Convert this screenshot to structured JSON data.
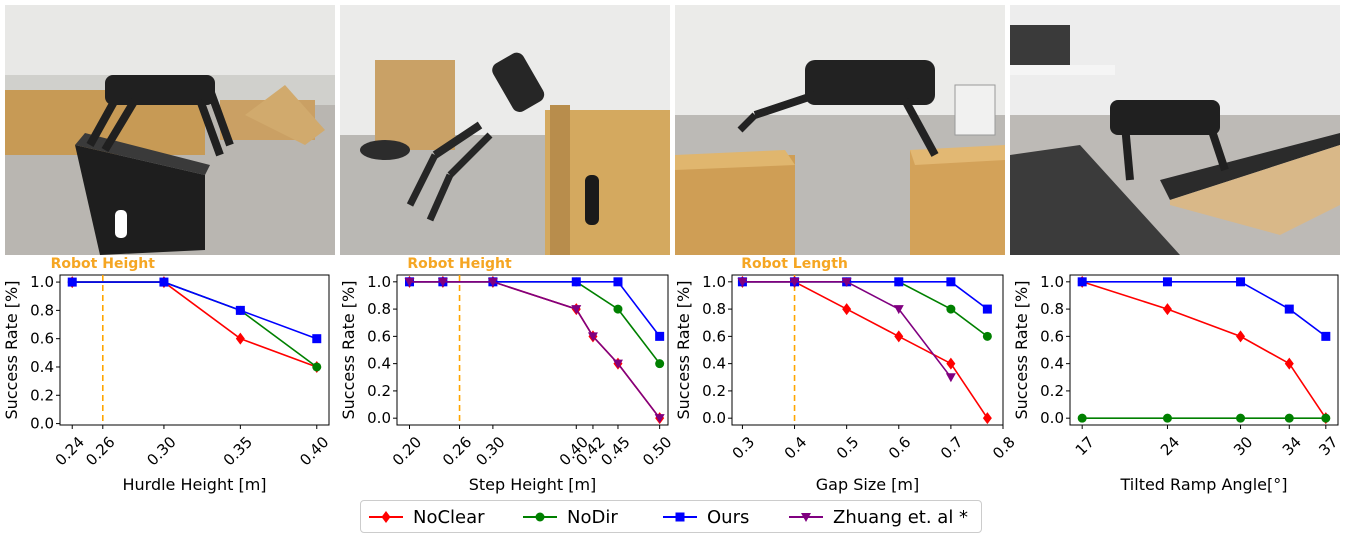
{
  "colors": {
    "NoClear": "#ff0000",
    "NoDir": "#008000",
    "Ours": "#0000ff",
    "Zhuang": "#800080",
    "ref_line": "#ffa500",
    "ref_label": "#f5a623"
  },
  "photos": [
    {
      "scene": "hurdle-box-scene"
    },
    {
      "scene": "step-box-scene"
    },
    {
      "scene": "gap-boxes-scene"
    },
    {
      "scene": "tilted-ramp-scene"
    }
  ],
  "legend": [
    {
      "label": "NoClear",
      "marker": "diamond",
      "color": "#ff0000"
    },
    {
      "label": "NoDir",
      "marker": "circle",
      "color": "#008000"
    },
    {
      "label": "Ours",
      "marker": "square",
      "color": "#0000ff"
    },
    {
      "label": "Zhuang et. al *",
      "marker": "triangle-down",
      "color": "#800080"
    }
  ],
  "chart_data": [
    {
      "type": "line",
      "xlabel": "Hurdle Height [m]",
      "ylabel": "Success Rate [%]",
      "xlim": [
        0.232,
        0.408
      ],
      "ylim": [
        -0.01,
        1.05
      ],
      "xticks": [
        0.24,
        0.26,
        0.3,
        0.35,
        0.4
      ],
      "xtick_labels": [
        "0.24",
        "0.26",
        "0.30",
        "0.35",
        "0.40"
      ],
      "yticks": [
        0.0,
        0.2,
        0.4,
        0.6,
        0.8,
        1.0
      ],
      "ytick_labels": [
        "0.0",
        "0.2",
        "0.4",
        "0.6",
        "0.8",
        "1.0"
      ],
      "reference_line": {
        "x": 0.26,
        "label": "Robot Height"
      },
      "series": [
        {
          "name": "NoClear",
          "x": [
            0.24,
            0.3,
            0.35,
            0.4
          ],
          "values": [
            1.0,
            1.0,
            0.6,
            0.4
          ]
        },
        {
          "name": "NoDir",
          "x": [
            0.24,
            0.3,
            0.35,
            0.4
          ],
          "values": [
            1.0,
            1.0,
            0.8,
            0.4
          ]
        },
        {
          "name": "Ours",
          "x": [
            0.24,
            0.3,
            0.35,
            0.4
          ],
          "values": [
            1.0,
            1.0,
            0.8,
            0.6
          ]
        }
      ]
    },
    {
      "type": "line",
      "xlabel": "Step Height [m]",
      "ylabel": "Success Rate [%]",
      "xlim": [
        0.185,
        0.51
      ],
      "ylim": [
        -0.05,
        1.05
      ],
      "xticks": [
        0.2,
        0.26,
        0.3,
        0.4,
        0.42,
        0.45,
        0.5
      ],
      "xtick_labels": [
        "0.20",
        "0.26",
        "0.30",
        "0.40",
        "0.42",
        "0.45",
        "0.50"
      ],
      "yticks": [
        0.0,
        0.2,
        0.4,
        0.6,
        0.8,
        1.0
      ],
      "ytick_labels": [
        "0.0",
        "0.2",
        "0.4",
        "0.6",
        "0.8",
        "1.0"
      ],
      "reference_line": {
        "x": 0.26,
        "label": "Robot Height"
      },
      "series": [
        {
          "name": "NoClear",
          "x": [
            0.2,
            0.24,
            0.3,
            0.4,
            0.42,
            0.45,
            0.5
          ],
          "values": [
            1.0,
            1.0,
            1.0,
            0.8,
            0.6,
            0.4,
            0.0
          ]
        },
        {
          "name": "NoDir",
          "x": [
            0.2,
            0.24,
            0.3,
            0.4,
            0.45,
            0.5
          ],
          "values": [
            1.0,
            1.0,
            1.0,
            1.0,
            0.8,
            0.4
          ]
        },
        {
          "name": "Ours",
          "x": [
            0.2,
            0.24,
            0.3,
            0.4,
            0.45,
            0.5
          ],
          "values": [
            1.0,
            1.0,
            1.0,
            1.0,
            1.0,
            0.6
          ]
        },
        {
          "name": "Zhuang et. al *",
          "x": [
            0.2,
            0.24,
            0.3,
            0.4,
            0.42,
            0.45,
            0.5
          ],
          "values": [
            1.0,
            1.0,
            1.0,
            0.8,
            0.6,
            0.4,
            0.0
          ]
        }
      ]
    },
    {
      "type": "line",
      "xlabel": "Gap Size [m]",
      "ylabel": "Success Rate [%]",
      "xlim": [
        0.28,
        0.8
      ],
      "ylim": [
        -0.05,
        1.05
      ],
      "xticks": [
        0.3,
        0.4,
        0.5,
        0.6,
        0.7,
        0.8
      ],
      "xtick_labels": [
        "0.3",
        "0.4",
        "0.5",
        "0.6",
        "0.7",
        "0.8"
      ],
      "yticks": [
        0.0,
        0.2,
        0.4,
        0.6,
        0.8,
        1.0
      ],
      "ytick_labels": [
        "0.0",
        "0.2",
        "0.4",
        "0.6",
        "0.8",
        "1.0"
      ],
      "reference_line": {
        "x": 0.4,
        "label": "Robot Length"
      },
      "series": [
        {
          "name": "NoClear",
          "x": [
            0.3,
            0.4,
            0.5,
            0.6,
            0.7,
            0.77
          ],
          "values": [
            1.0,
            1.0,
            0.8,
            0.6,
            0.4,
            0.0
          ]
        },
        {
          "name": "NoDir",
          "x": [
            0.3,
            0.4,
            0.5,
            0.6,
            0.7,
            0.77
          ],
          "values": [
            1.0,
            1.0,
            1.0,
            1.0,
            0.8,
            0.6
          ]
        },
        {
          "name": "Ours",
          "x": [
            0.3,
            0.4,
            0.5,
            0.6,
            0.7,
            0.77
          ],
          "values": [
            1.0,
            1.0,
            1.0,
            1.0,
            1.0,
            0.8
          ]
        },
        {
          "name": "Zhuang et. al *",
          "x": [
            0.3,
            0.4,
            0.5,
            0.6,
            0.7
          ],
          "values": [
            1.0,
            1.0,
            1.0,
            0.8,
            0.3
          ]
        }
      ]
    },
    {
      "type": "line",
      "xlabel": "Tilted Ramp Angle[°]",
      "ylabel": "Success Rate [%]",
      "xlim": [
        16.0,
        38.0
      ],
      "ylim": [
        -0.05,
        1.05
      ],
      "xticks": [
        17,
        24,
        30,
        34,
        37
      ],
      "xtick_labels": [
        "17",
        "24",
        "30",
        "34",
        "37"
      ],
      "yticks": [
        0.0,
        0.2,
        0.4,
        0.6,
        0.8,
        1.0
      ],
      "ytick_labels": [
        "0.0",
        "0.2",
        "0.4",
        "0.6",
        "0.8",
        "1.0"
      ],
      "series": [
        {
          "name": "NoClear",
          "x": [
            17,
            24,
            30,
            34,
            37
          ],
          "values": [
            1.0,
            0.8,
            0.6,
            0.4,
            0.0
          ]
        },
        {
          "name": "NoDir",
          "x": [
            17,
            24,
            30,
            34,
            37
          ],
          "values": [
            0.0,
            0.0,
            0.0,
            0.0,
            0.0
          ]
        },
        {
          "name": "Ours",
          "x": [
            17,
            24,
            30,
            34,
            37
          ],
          "values": [
            1.0,
            1.0,
            1.0,
            0.8,
            0.6
          ]
        }
      ]
    }
  ]
}
